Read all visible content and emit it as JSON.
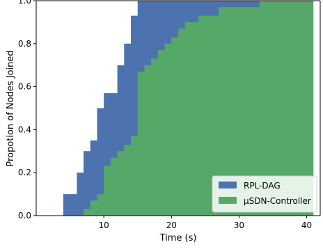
{
  "chart_data": {
    "type": "area",
    "xlabel": "Time (s)",
    "ylabel": "Propotion of Nodes Joined",
    "xlim": [
      0,
      42
    ],
    "ylim": [
      0,
      1.0
    ],
    "x_ticks": [
      10,
      20,
      30,
      40
    ],
    "y_ticks": [
      0.0,
      0.2,
      0.4,
      0.6,
      0.8,
      1.0
    ],
    "x_tick_labels": [
      "10",
      "20",
      "30",
      "40"
    ],
    "y_tick_labels": [
      "0.0",
      "0.2",
      "0.4",
      "0.6",
      "0.8",
      "1.0"
    ],
    "grid": false,
    "legend_position": "bottom-right",
    "series": [
      {
        "name": "RPL-DAG",
        "color": "#4c72b0",
        "step": true,
        "x": [
          0,
          4,
          6,
          7,
          8,
          9,
          10,
          12,
          13,
          14,
          15,
          34
        ],
        "y": [
          0,
          0.1,
          0.2,
          0.3,
          0.35,
          0.5,
          0.57,
          0.7,
          0.8,
          0.93,
          1.0,
          1.0
        ]
      },
      {
        "name": "μSDN-Controller",
        "color": "#55a868",
        "step": true,
        "x": [
          0,
          7,
          8,
          9,
          10,
          11,
          12,
          13,
          14,
          15,
          16,
          17,
          18,
          19,
          20,
          21,
          22,
          23,
          24,
          25,
          27,
          28,
          30,
          33,
          34,
          41
        ],
        "y": [
          0,
          0.03,
          0.07,
          0.1,
          0.23,
          0.27,
          0.3,
          0.33,
          0.37,
          0.67,
          0.7,
          0.73,
          0.77,
          0.8,
          0.83,
          0.87,
          0.9,
          0.9,
          0.93,
          0.93,
          0.97,
          0.97,
          0.97,
          1.0,
          1.0,
          1.0
        ]
      }
    ]
  }
}
